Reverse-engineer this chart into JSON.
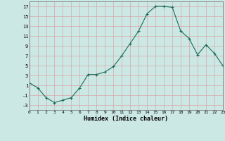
{
  "x": [
    0,
    1,
    2,
    3,
    4,
    5,
    6,
    7,
    8,
    9,
    10,
    11,
    12,
    13,
    14,
    15,
    16,
    17,
    18,
    19,
    20,
    21,
    22,
    23
  ],
  "y": [
    1.5,
    0.5,
    -1.5,
    -2.5,
    -2.0,
    -1.5,
    0.5,
    3.2,
    3.2,
    3.7,
    4.8,
    7.0,
    9.5,
    12.0,
    15.5,
    17.0,
    17.0,
    16.8,
    12.0,
    10.5,
    7.2,
    9.2,
    7.5,
    5.0
  ],
  "xlabel": "Humidex (Indice chaleur)",
  "bg_color": "#cce8e4",
  "grid_color": "#d8a8a8",
  "line_color": "#1a6b5a",
  "marker_color": "#1a6b5a",
  "xlim": [
    0,
    23
  ],
  "ylim": [
    -4,
    18
  ],
  "yticks": [
    -3,
    -1,
    1,
    3,
    5,
    7,
    9,
    11,
    13,
    15,
    17
  ],
  "xticks": [
    0,
    1,
    2,
    3,
    4,
    5,
    6,
    7,
    8,
    9,
    10,
    11,
    12,
    13,
    14,
    15,
    16,
    17,
    18,
    19,
    20,
    21,
    22,
    23
  ]
}
